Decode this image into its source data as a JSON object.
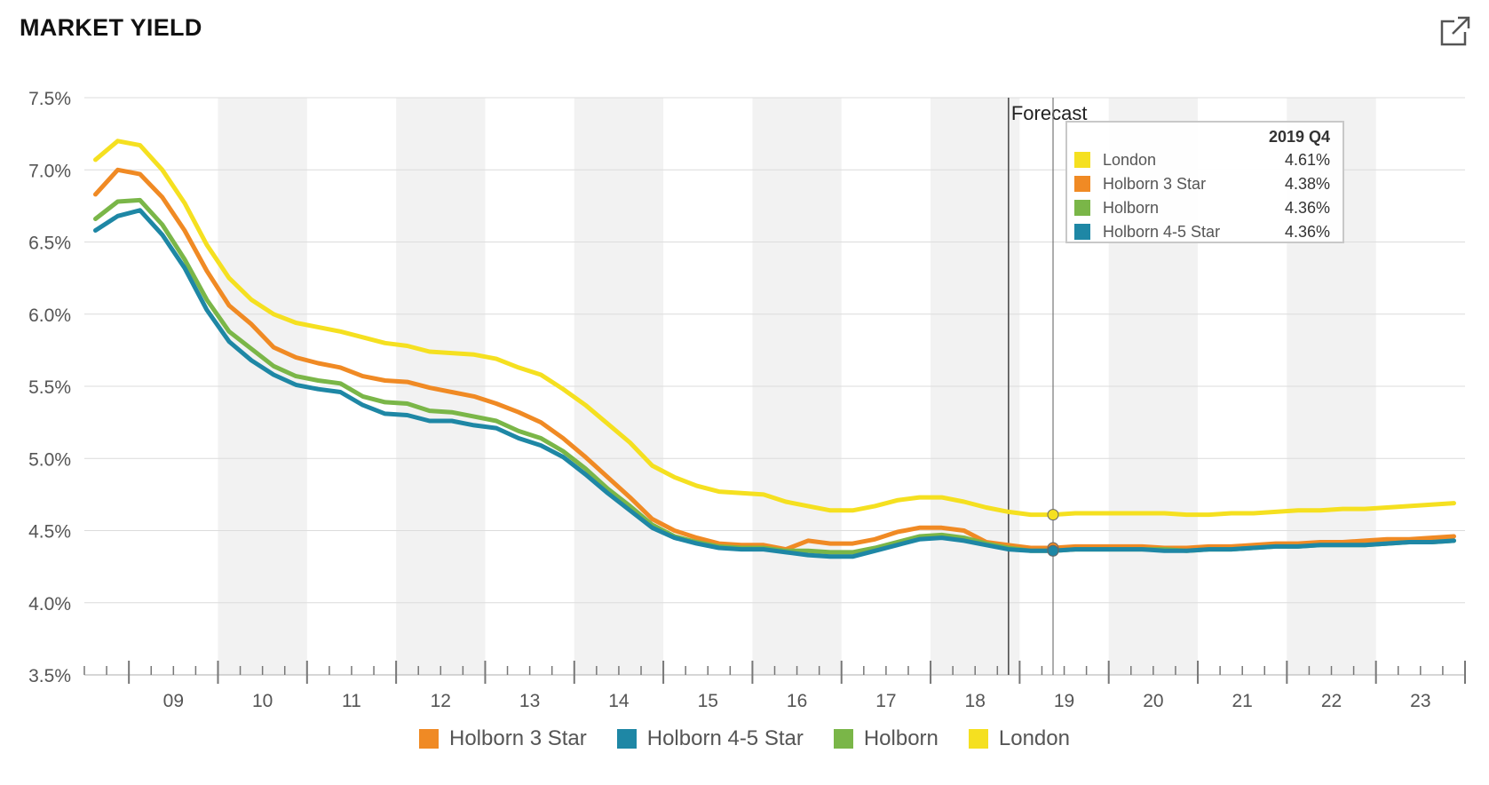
{
  "header": {
    "title": "MARKET YIELD",
    "expand_icon": "external-link-icon"
  },
  "chart_data": {
    "type": "line",
    "title": "MARKET YIELD",
    "ylim": [
      3.5,
      7.5
    ],
    "y_ticks": [
      "3.5%",
      "4.0%",
      "4.5%",
      "5.0%",
      "5.5%",
      "6.0%",
      "6.5%",
      "7.0%",
      "7.5%"
    ],
    "x_ticks": [
      "09",
      "10",
      "11",
      "12",
      "13",
      "14",
      "15",
      "16",
      "17",
      "18",
      "19",
      "20",
      "21",
      "22",
      "23"
    ],
    "x_start": 2008.5,
    "x_end": 2024.0,
    "forecast_label": "Forecast",
    "forecast_start": 2018.875,
    "highlight_x": 2019.375,
    "series": [
      {
        "name": "London",
        "color": "#f5e020",
        "values": [
          7.07,
          7.2,
          7.17,
          7.0,
          6.77,
          6.48,
          6.25,
          6.1,
          6.0,
          5.94,
          5.91,
          5.88,
          5.84,
          5.8,
          5.78,
          5.74,
          5.73,
          5.72,
          5.69,
          5.63,
          5.58,
          5.48,
          5.37,
          5.24,
          5.11,
          4.95,
          4.87,
          4.81,
          4.77,
          4.76,
          4.75,
          4.7,
          4.67,
          4.64,
          4.64,
          4.67,
          4.71,
          4.73,
          4.73,
          4.7,
          4.66,
          4.63,
          4.61,
          4.61,
          4.62,
          4.62,
          4.62,
          4.62,
          4.62,
          4.61,
          4.61,
          4.62,
          4.62,
          4.63,
          4.64,
          4.64,
          4.65,
          4.65,
          4.66,
          4.67,
          4.68,
          4.69
        ]
      },
      {
        "name": "Holborn 3 Star",
        "color": "#f08a24",
        "values": [
          6.83,
          7.0,
          6.97,
          6.81,
          6.58,
          6.3,
          6.06,
          5.93,
          5.77,
          5.7,
          5.66,
          5.63,
          5.57,
          5.54,
          5.53,
          5.49,
          5.46,
          5.43,
          5.38,
          5.32,
          5.25,
          5.14,
          5.01,
          4.87,
          4.73,
          4.58,
          4.5,
          4.45,
          4.41,
          4.4,
          4.4,
          4.37,
          4.43,
          4.41,
          4.41,
          4.44,
          4.49,
          4.52,
          4.52,
          4.5,
          4.42,
          4.4,
          4.38,
          4.38,
          4.39,
          4.39,
          4.39,
          4.39,
          4.38,
          4.38,
          4.39,
          4.39,
          4.4,
          4.41,
          4.41,
          4.42,
          4.42,
          4.43,
          4.44,
          4.44,
          4.45,
          4.46
        ]
      },
      {
        "name": "Holborn",
        "color": "#7ab648",
        "values": [
          6.66,
          6.78,
          6.79,
          6.62,
          6.38,
          6.1,
          5.88,
          5.76,
          5.64,
          5.57,
          5.54,
          5.52,
          5.43,
          5.39,
          5.38,
          5.33,
          5.32,
          5.29,
          5.26,
          5.19,
          5.14,
          5.05,
          4.93,
          4.79,
          4.67,
          4.54,
          4.46,
          4.42,
          4.39,
          4.38,
          4.38,
          4.36,
          4.36,
          4.35,
          4.35,
          4.38,
          4.42,
          4.46,
          4.47,
          4.45,
          4.41,
          4.38,
          4.36,
          4.36,
          4.37,
          4.37,
          4.37,
          4.37,
          4.37,
          4.36,
          4.37,
          4.37,
          4.38,
          4.39,
          4.39,
          4.4,
          4.4,
          4.4,
          4.41,
          4.42,
          4.42,
          4.43
        ]
      },
      {
        "name": "Holborn 4-5 Star",
        "color": "#1e87a5",
        "values": [
          6.58,
          6.68,
          6.72,
          6.55,
          6.32,
          6.03,
          5.81,
          5.68,
          5.58,
          5.51,
          5.48,
          5.46,
          5.37,
          5.31,
          5.3,
          5.26,
          5.26,
          5.23,
          5.21,
          5.14,
          5.09,
          5.01,
          4.89,
          4.76,
          4.64,
          4.52,
          4.45,
          4.41,
          4.38,
          4.37,
          4.37,
          4.35,
          4.33,
          4.32,
          4.32,
          4.36,
          4.4,
          4.44,
          4.45,
          4.43,
          4.4,
          4.37,
          4.36,
          4.36,
          4.37,
          4.37,
          4.37,
          4.37,
          4.36,
          4.36,
          4.37,
          4.37,
          4.38,
          4.39,
          4.39,
          4.4,
          4.4,
          4.4,
          4.41,
          4.42,
          4.42,
          4.43
        ]
      }
    ]
  },
  "tooltip": {
    "period": "2019 Q4",
    "rows": [
      {
        "name": "London",
        "value": "4.61%",
        "color": "#f5e020"
      },
      {
        "name": "Holborn 3 Star",
        "value": "4.38%",
        "color": "#f08a24"
      },
      {
        "name": "Holborn",
        "value": "4.36%",
        "color": "#7ab648"
      },
      {
        "name": "Holborn 4-5 Star",
        "value": "4.36%",
        "color": "#1e87a5"
      }
    ]
  },
  "legend": [
    {
      "label": "Holborn 3 Star",
      "color": "#f08a24"
    },
    {
      "label": "Holborn 4-5 Star",
      "color": "#1e87a5"
    },
    {
      "label": "Holborn",
      "color": "#7ab648"
    },
    {
      "label": "London",
      "color": "#f5e020"
    }
  ]
}
